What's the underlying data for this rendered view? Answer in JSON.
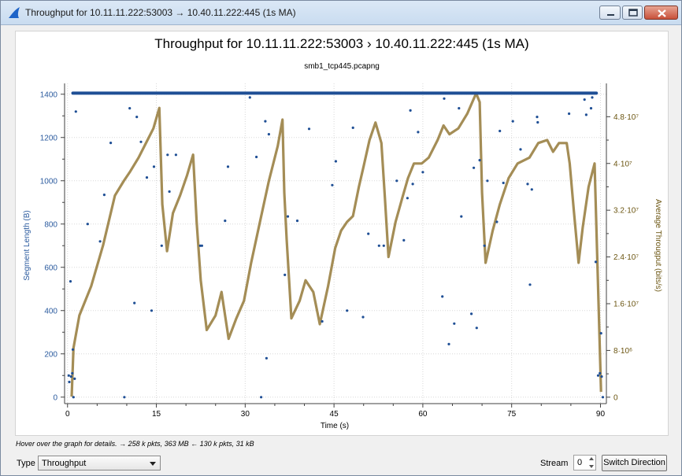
{
  "window": {
    "title": "Throughput for 10.11.11.222:53003 → 10.40.11.222:445 (1s MA)",
    "icon": "shark-fin-icon",
    "controls": [
      "minimize",
      "maximize",
      "close"
    ]
  },
  "chart_data": {
    "type": "scatter",
    "title": "Throughput for 10.11.11.222:53003   › 10.40.11.222:445 (1s MA)",
    "subtitle": "smb1_tcp445.pcapng",
    "xlabel": "Time (s)",
    "ylabel": "Segment Length (B)",
    "y2label": "Average Througput (bits/s)",
    "xlim": [
      -0.5,
      91
    ],
    "ylim": [
      -30,
      1450
    ],
    "y2lim": [
      -1100000,
      53700000
    ],
    "xticks": [
      0,
      15,
      30,
      45,
      60,
      75,
      90
    ],
    "xtick_labels": [
      "0",
      "15",
      "30",
      "45",
      "60",
      "75",
      "90"
    ],
    "yticks": [
      0,
      200,
      400,
      600,
      800,
      1000,
      1200,
      1400
    ],
    "ytick_labels": [
      "0",
      "200",
      "400",
      "600",
      "800",
      "1000",
      "1200",
      "1400"
    ],
    "y2ticks": [
      0,
      8000000,
      16000000,
      24000000,
      32000000,
      40000000,
      48000000
    ],
    "y2tick_labels": [
      "0",
      "8·10⁶",
      "1.6·10⁷",
      "2.4·10⁷",
      "3.2·10⁷",
      "4·10⁷",
      "4.8·10⁷"
    ],
    "grid": true,
    "colors": {
      "segments": "#1f4f95",
      "throughput": "#9c8348",
      "axis_left": "#2a5a9e",
      "axis_right": "#6b5511"
    },
    "series": [
      {
        "name": "Segment Length",
        "kind": "scatter",
        "band": {
          "x_start": 0.9,
          "x_end": 89.3,
          "y": 1405
        },
        "points": [
          [
            0.2,
            100
          ],
          [
            0.3,
            70
          ],
          [
            0.5,
            535
          ],
          [
            0.6,
            95
          ],
          [
            0.8,
            110
          ],
          [
            0.9,
            220
          ],
          [
            1.0,
            0
          ],
          [
            1.2,
            85
          ],
          [
            1.4,
            1320
          ],
          [
            3.4,
            800
          ],
          [
            5.5,
            720
          ],
          [
            6.2,
            935
          ],
          [
            7.3,
            1175
          ],
          [
            9.6,
            0
          ],
          [
            10.5,
            1335
          ],
          [
            11.3,
            435
          ],
          [
            11.7,
            1295
          ],
          [
            12.4,
            1180
          ],
          [
            13.4,
            1015
          ],
          [
            14.2,
            400
          ],
          [
            14.6,
            1065
          ],
          [
            15.9,
            700
          ],
          [
            16.9,
            1120
          ],
          [
            17.2,
            950
          ],
          [
            18.3,
            1120
          ],
          [
            22.4,
            700
          ],
          [
            22.7,
            700
          ],
          [
            26.6,
            815
          ],
          [
            27.1,
            1065
          ],
          [
            30.8,
            1385
          ],
          [
            31.9,
            1110
          ],
          [
            32.7,
            0
          ],
          [
            33.4,
            1275
          ],
          [
            33.6,
            180
          ],
          [
            34.0,
            1215
          ],
          [
            36.7,
            565
          ],
          [
            37.2,
            835
          ],
          [
            38.8,
            815
          ],
          [
            40.8,
            1240
          ],
          [
            43.0,
            350
          ],
          [
            44.7,
            980
          ],
          [
            45.3,
            1090
          ],
          [
            47.2,
            400
          ],
          [
            48.2,
            1245
          ],
          [
            49.9,
            370
          ],
          [
            50.8,
            755
          ],
          [
            52.6,
            700
          ],
          [
            53.4,
            700
          ],
          [
            55.6,
            1000
          ],
          [
            56.8,
            725
          ],
          [
            57.4,
            920
          ],
          [
            57.9,
            1325
          ],
          [
            58.3,
            985
          ],
          [
            59.2,
            1225
          ],
          [
            60.0,
            1040
          ],
          [
            63.3,
            465
          ],
          [
            63.6,
            1380
          ],
          [
            64.4,
            245
          ],
          [
            65.3,
            340
          ],
          [
            66.1,
            1335
          ],
          [
            66.5,
            835
          ],
          [
            68.2,
            385
          ],
          [
            68.6,
            1060
          ],
          [
            69.1,
            320
          ],
          [
            69.6,
            1095
          ],
          [
            70.4,
            700
          ],
          [
            70.9,
            1000
          ],
          [
            72.5,
            810
          ],
          [
            73.0,
            1230
          ],
          [
            73.6,
            990
          ],
          [
            75.2,
            1275
          ],
          [
            76.5,
            1145
          ],
          [
            77.7,
            985
          ],
          [
            78.1,
            520
          ],
          [
            78.4,
            960
          ],
          [
            79.3,
            1295
          ],
          [
            79.4,
            1270
          ],
          [
            84.7,
            1310
          ],
          [
            87.3,
            1375
          ],
          [
            87.6,
            1305
          ],
          [
            88.4,
            1335
          ],
          [
            88.6,
            1385
          ],
          [
            89.2,
            625
          ],
          [
            89.6,
            100
          ],
          [
            89.9,
            110
          ],
          [
            90.1,
            295
          ],
          [
            90.2,
            95
          ],
          [
            90.4,
            0
          ]
        ]
      },
      {
        "name": "Average Througput",
        "kind": "line",
        "points": [
          [
            0.7,
            100000
          ],
          [
            1.0,
            8400000
          ],
          [
            2.0,
            14000000
          ],
          [
            4.0,
            19000000
          ],
          [
            6.0,
            26000000
          ],
          [
            8.0,
            34500000
          ],
          [
            9.5,
            37000000
          ],
          [
            10.5,
            38500000
          ],
          [
            12.0,
            41000000
          ],
          [
            13.5,
            44000000
          ],
          [
            14.5,
            46000000
          ],
          [
            15.5,
            49500000
          ],
          [
            16.0,
            33000000
          ],
          [
            16.8,
            25000000
          ],
          [
            17.8,
            31500000
          ],
          [
            19.0,
            34500000
          ],
          [
            20.2,
            38000000
          ],
          [
            21.2,
            41500000
          ],
          [
            21.8,
            30000000
          ],
          [
            22.5,
            20000000
          ],
          [
            23.5,
            11500000
          ],
          [
            25.0,
            14000000
          ],
          [
            26.0,
            18000000
          ],
          [
            27.2,
            10000000
          ],
          [
            28.5,
            13500000
          ],
          [
            29.8,
            16500000
          ],
          [
            31.0,
            23000000
          ],
          [
            32.5,
            30000000
          ],
          [
            34.0,
            37000000
          ],
          [
            35.5,
            43000000
          ],
          [
            36.3,
            47500000
          ],
          [
            36.6,
            35000000
          ],
          [
            37.0,
            27000000
          ],
          [
            37.8,
            13500000
          ],
          [
            39.2,
            16500000
          ],
          [
            40.2,
            20000000
          ],
          [
            41.5,
            18000000
          ],
          [
            42.6,
            12500000
          ],
          [
            44.0,
            19000000
          ],
          [
            45.2,
            25500000
          ],
          [
            46.2,
            28500000
          ],
          [
            47.2,
            30000000
          ],
          [
            48.2,
            31000000
          ],
          [
            49.2,
            36000000
          ],
          [
            50.0,
            39500000
          ],
          [
            51.0,
            44000000
          ],
          [
            52.0,
            47000000
          ],
          [
            53.0,
            43500000
          ],
          [
            53.6,
            34000000
          ],
          [
            54.2,
            24000000
          ],
          [
            55.4,
            30000000
          ],
          [
            56.5,
            34000000
          ],
          [
            57.5,
            37500000
          ],
          [
            58.5,
            40000000
          ],
          [
            59.8,
            40000000
          ],
          [
            61.0,
            41000000
          ],
          [
            62.5,
            44000000
          ],
          [
            63.5,
            46500000
          ],
          [
            64.5,
            45000000
          ],
          [
            66.0,
            46000000
          ],
          [
            67.5,
            48500000
          ],
          [
            69.0,
            52000000
          ],
          [
            69.6,
            50500000
          ],
          [
            70.0,
            35000000
          ],
          [
            70.6,
            23000000
          ],
          [
            71.8,
            28500000
          ],
          [
            73.0,
            33000000
          ],
          [
            74.5,
            37500000
          ],
          [
            76.0,
            40000000
          ],
          [
            78.0,
            41000000
          ],
          [
            79.5,
            43500000
          ],
          [
            81.0,
            44000000
          ],
          [
            82.0,
            42000000
          ],
          [
            83.0,
            43500000
          ],
          [
            84.3,
            43500000
          ],
          [
            84.8,
            40000000
          ],
          [
            85.5,
            32000000
          ],
          [
            86.3,
            23000000
          ],
          [
            87.0,
            29000000
          ],
          [
            88.0,
            36000000
          ],
          [
            89.0,
            40000000
          ],
          [
            90.1,
            900000
          ]
        ]
      }
    ]
  },
  "status_text": "Hover over the graph for details. → 258 k pkts, 363 MB ← 130 k pkts, 31 kB",
  "controls": {
    "type_label": "Type",
    "type_value": "Throughput",
    "stream_label": "Stream",
    "stream_value": "0",
    "switch_label": "Switch Direction"
  }
}
